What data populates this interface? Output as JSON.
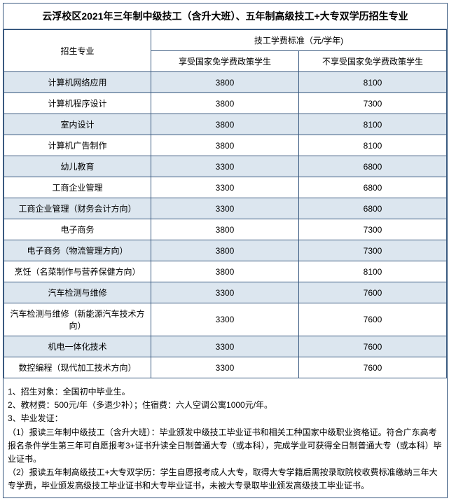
{
  "title": "云浮校区2021年三年制中级技工（含升大班）、五年制高级技工+大专双学历招生专业",
  "header": {
    "major": "招生专业",
    "fee_group": "技工学费标准（元/学年)",
    "fee_free": "享受国家免学费政策学生",
    "fee_nofree": "不享受国家免学费政策学生"
  },
  "rows": [
    {
      "major": "计算机网络应用",
      "free": "3800",
      "nofree": "8100"
    },
    {
      "major": "计算机程序设计",
      "free": "3800",
      "nofree": "7300"
    },
    {
      "major": "室内设计",
      "free": "3800",
      "nofree": "8100"
    },
    {
      "major": "计算机广告制作",
      "free": "3800",
      "nofree": "8100"
    },
    {
      "major": "幼儿教育",
      "free": "3300",
      "nofree": "6800"
    },
    {
      "major": "工商企业管理",
      "free": "3300",
      "nofree": "6800"
    },
    {
      "major": "工商企业管理（财务会计方向）",
      "free": "3300",
      "nofree": "6800"
    },
    {
      "major": "电子商务",
      "free": "3800",
      "nofree": "7300"
    },
    {
      "major": "电子商务（物流管理方向）",
      "free": "3800",
      "nofree": "7300"
    },
    {
      "major": "烹饪（名菜制作与营养保健方向）",
      "free": "3800",
      "nofree": "8100"
    },
    {
      "major": "汽车检测与维修",
      "free": "3300",
      "nofree": "7600"
    },
    {
      "major": "汽车检测与维修（新能源汽车技术方向）",
      "free": "3300",
      "nofree": "7600"
    },
    {
      "major": "机电一体化技术",
      "free": "3300",
      "nofree": "7600"
    },
    {
      "major": "数控编程（现代加工技术方向）",
      "free": "3300",
      "nofree": "7600"
    }
  ],
  "notes": [
    "1、招生对象：全国初中毕业生。",
    "2、教材费：500元/年（多退少补）；住宿费：六人空调公寓1000元/年。",
    "3、毕业发证：",
    "（1）报读三年制中级技工（含升大班）：毕业颁发中级技工毕业证书和相关工种国家中级职业资格证。符合广东高考报名条件学生第三年可自愿报考3+证书升读全日制普通大专（或本科），完成学业可获得全日制普通大专（或本科）毕业证书。",
    "（2）报读五年制高级技工+大专双学历：学生自愿报考成人大专，取得大专学籍后需按录取院校收费标准缴纳三年大专学费，毕业颁发高级技工毕业证书和大专毕业证书，未被大专录取毕业颁发高级技工毕业证书。"
  ]
}
